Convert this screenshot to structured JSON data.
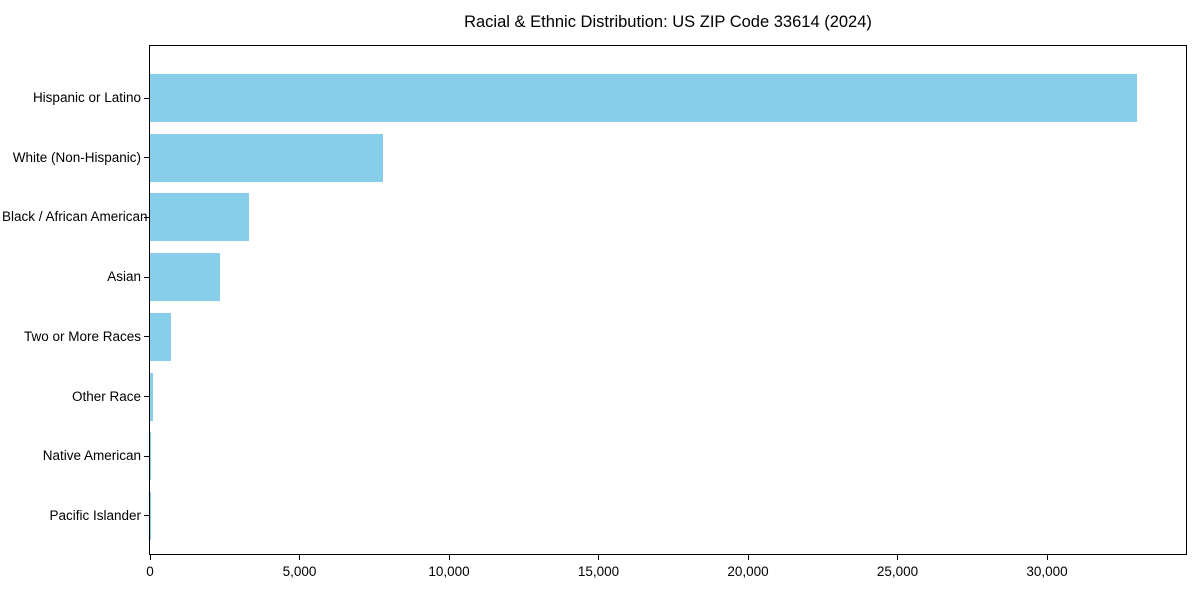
{
  "chart_data": {
    "type": "bar",
    "orientation": "horizontal",
    "title": "Racial & Ethnic Distribution: US ZIP Code 33614 (2024)",
    "categories": [
      "Hispanic or Latino",
      "White (Non-Hispanic)",
      "Black / African American",
      "Asian",
      "Two or More Races",
      "Other Race",
      "Native American",
      "Pacific Islander"
    ],
    "values": [
      33000,
      7800,
      3300,
      2350,
      700,
      100,
      40,
      15
    ],
    "xlabel": "",
    "ylabel": "",
    "xlim": [
      0,
      34650
    ],
    "xticks": [
      0,
      5000,
      10000,
      15000,
      20000,
      25000,
      30000
    ],
    "xtick_labels": [
      "0",
      "5,000",
      "10,000",
      "15,000",
      "20,000",
      "25,000",
      "30,000"
    ],
    "bar_color": "#87CEEB",
    "axis_color": "#000000",
    "text_color": "#000000",
    "background_color": "#FFFFFF",
    "grid": false,
    "legend": null
  }
}
